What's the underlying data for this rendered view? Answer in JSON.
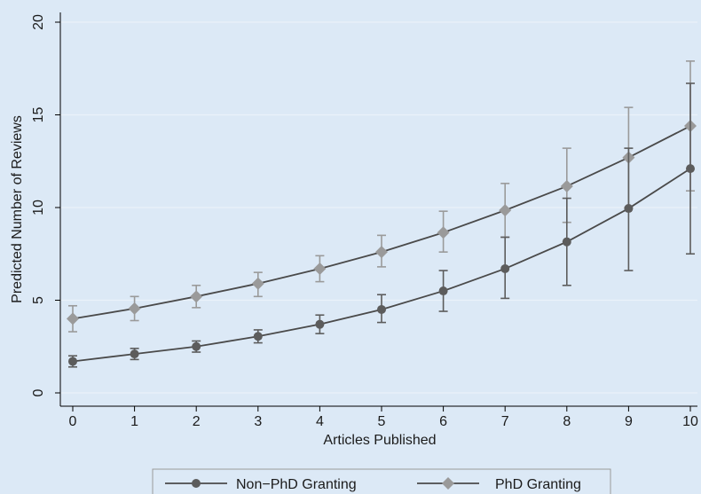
{
  "chart_data": {
    "type": "line",
    "xlabel": "Articles Published",
    "ylabel": "Predicted Number of Reviews",
    "xlim": [
      0,
      10
    ],
    "ylim": [
      0,
      20
    ],
    "x_ticks": [
      "0",
      "1",
      "2",
      "3",
      "4",
      "5",
      "6",
      "7",
      "8",
      "9",
      "10"
    ],
    "y_ticks": [
      "0",
      "5",
      "10",
      "15",
      "20"
    ],
    "grid": true,
    "legend_position": "bottom",
    "x": [
      0,
      1,
      2,
      3,
      4,
      5,
      6,
      7,
      8,
      9,
      10
    ],
    "series": [
      {
        "name": "Non−PhD Granting",
        "marker": "circle",
        "color": "#5c5c5c",
        "values": [
          1.7,
          2.1,
          2.5,
          3.05,
          3.7,
          4.5,
          5.5,
          6.7,
          8.15,
          9.95,
          12.1
        ],
        "ci_low": [
          1.4,
          1.8,
          2.2,
          2.7,
          3.2,
          3.8,
          4.4,
          5.1,
          5.8,
          6.6,
          7.5
        ],
        "ci_high": [
          2.0,
          2.4,
          2.8,
          3.4,
          4.2,
          5.3,
          6.6,
          8.4,
          10.5,
          13.2,
          16.7
        ]
      },
      {
        "name": "PhD Granting",
        "marker": "diamond",
        "color": "#9a9a9a",
        "values": [
          4.0,
          4.55,
          5.2,
          5.9,
          6.7,
          7.6,
          8.65,
          9.85,
          11.15,
          12.7,
          14.4
        ],
        "ci_low": [
          3.3,
          3.9,
          4.6,
          5.2,
          6.0,
          6.8,
          7.6,
          8.4,
          9.2,
          10.0,
          10.9
        ],
        "ci_high": [
          4.7,
          5.2,
          5.8,
          6.5,
          7.4,
          8.5,
          9.8,
          11.3,
          13.2,
          15.4,
          17.9
        ]
      }
    ]
  }
}
